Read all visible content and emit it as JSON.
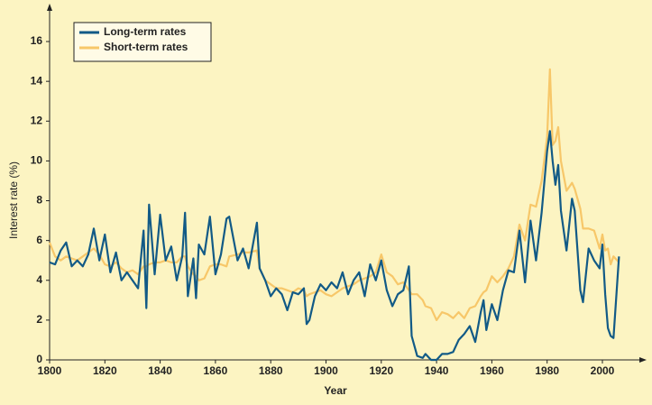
{
  "chart_data": {
    "type": "line",
    "x_label": "Year",
    "y_label": "Interest rate (%)",
    "x": [
      1800,
      1802,
      1804,
      1806,
      1808,
      1810,
      1812,
      1814,
      1816,
      1818,
      1820,
      1822,
      1824,
      1826,
      1828,
      1830,
      1832,
      1834,
      1835,
      1836,
      1838,
      1840,
      1842,
      1844,
      1846,
      1848,
      1849,
      1850,
      1852,
      1853,
      1854,
      1856,
      1858,
      1860,
      1862,
      1864,
      1865,
      1868,
      1870,
      1872,
      1875,
      1876,
      1878,
      1880,
      1882,
      1884,
      1886,
      1888,
      1890,
      1892,
      1893,
      1894,
      1896,
      1898,
      1900,
      1902,
      1904,
      1906,
      1908,
      1910,
      1912,
      1914,
      1916,
      1918,
      1920,
      1922,
      1924,
      1926,
      1928,
      1930,
      1931,
      1933,
      1935,
      1936,
      1938,
      1940,
      1942,
      1944,
      1946,
      1948,
      1950,
      1952,
      1954,
      1956,
      1957,
      1958,
      1960,
      1962,
      1964,
      1966,
      1968,
      1970,
      1972,
      1974,
      1976,
      1978,
      1980,
      1981,
      1982,
      1983,
      1984,
      1985,
      1987,
      1989,
      1990,
      1992,
      1993,
      1995,
      1997,
      1999,
      2000,
      2001,
      2002,
      2003,
      2004,
      2006
    ],
    "series": [
      {
        "name": "Long-term rates",
        "color": "#125a86",
        "values": [
          4.9,
          4.8,
          5.5,
          5.9,
          4.7,
          5.0,
          4.7,
          5.3,
          6.6,
          5.0,
          6.3,
          4.4,
          5.4,
          4.0,
          4.4,
          4.0,
          3.6,
          6.5,
          2.6,
          7.8,
          4.3,
          7.3,
          5.0,
          5.7,
          4.0,
          5.2,
          7.4,
          3.2,
          5.1,
          3.1,
          5.8,
          5.3,
          7.2,
          4.3,
          5.3,
          7.1,
          7.2,
          5.0,
          5.6,
          4.6,
          6.9,
          4.6,
          4.0,
          3.2,
          3.6,
          3.3,
          2.5,
          3.4,
          3.3,
          3.6,
          1.8,
          2.0,
          3.2,
          3.8,
          3.5,
          3.9,
          3.6,
          4.4,
          3.3,
          4.0,
          4.4,
          3.2,
          4.8,
          4.0,
          5.0,
          3.5,
          2.7,
          3.3,
          3.5,
          4.7,
          1.2,
          0.2,
          0.1,
          0.3,
          0.0,
          0.0,
          0.3,
          0.3,
          0.4,
          1.0,
          1.3,
          1.7,
          0.9,
          2.4,
          3.0,
          1.5,
          2.8,
          2.0,
          3.5,
          4.5,
          4.4,
          6.5,
          3.9,
          7.0,
          5.0,
          7.4,
          10.5,
          11.5,
          10.0,
          8.8,
          9.8,
          7.5,
          5.5,
          8.1,
          7.5,
          3.5,
          2.9,
          5.6,
          5.0,
          4.6,
          5.8,
          3.3,
          1.6,
          1.2,
          1.1,
          5.2
        ]
      },
      {
        "name": "Short-term rates",
        "color": "#f7c769",
        "values": [
          5.9,
          5.2,
          5.0,
          5.2,
          5.1,
          5.0,
          5.2,
          5.4,
          5.6,
          5.3,
          4.8,
          4.7,
          4.9,
          4.6,
          4.4,
          4.5,
          4.3,
          4.7,
          4.7,
          4.8,
          4.9,
          4.9,
          5.0,
          4.9,
          4.9,
          5.2,
          5.2,
          4.7,
          4.3,
          4.2,
          4.0,
          4.1,
          4.7,
          4.8,
          4.8,
          4.7,
          5.2,
          5.3,
          5.4,
          5.4,
          5.5,
          4.6,
          4.0,
          3.8,
          3.6,
          3.6,
          3.5,
          3.4,
          3.6,
          3.5,
          3.2,
          3.3,
          3.4,
          3.5,
          3.3,
          3.2,
          3.4,
          3.6,
          3.7,
          3.8,
          4.0,
          4.1,
          4.2,
          4.4,
          5.3,
          4.4,
          4.2,
          3.8,
          3.9,
          3.5,
          3.3,
          3.3,
          3.0,
          2.7,
          2.6,
          2.0,
          2.4,
          2.3,
          2.1,
          2.4,
          2.1,
          2.6,
          2.7,
          3.2,
          3.4,
          3.5,
          4.2,
          3.9,
          4.2,
          4.6,
          5.2,
          6.8,
          6.0,
          7.8,
          7.7,
          9.0,
          11.2,
          14.6,
          10.8,
          11.0,
          11.7,
          10.0,
          8.5,
          8.9,
          8.6,
          7.6,
          6.6,
          6.6,
          6.5,
          5.6,
          6.3,
          5.5,
          5.6,
          4.8,
          5.2,
          4.9
        ]
      }
    ],
    "xlim": [
      1800,
      2014
    ],
    "ylim": [
      0,
      17.6
    ],
    "xticks": [
      1800,
      1820,
      1840,
      1860,
      1880,
      1900,
      1920,
      1940,
      1960,
      1980,
      2000
    ],
    "yticks": [
      0,
      2,
      4,
      6,
      8,
      10,
      12,
      14,
      16
    ],
    "legend": "top-left"
  }
}
